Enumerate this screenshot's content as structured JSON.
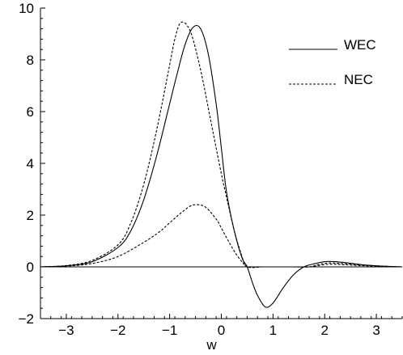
{
  "chart_data": {
    "type": "line",
    "xlabel": "w",
    "ylabel": "",
    "title": "",
    "xlim": [
      -3.5,
      3.5
    ],
    "ylim": [
      -2,
      10
    ],
    "x_ticks": [
      -3,
      -2,
      -1,
      0,
      1,
      2,
      3
    ],
    "y_ticks": [
      -2,
      0,
      2,
      4,
      6,
      8,
      10
    ],
    "x_tick_labels": [
      "−3",
      "−2",
      "−1",
      "0",
      "1",
      "2",
      "3"
    ],
    "y_tick_labels": [
      "−2",
      "0",
      "2",
      "4",
      "6",
      "8",
      "10"
    ],
    "legend": {
      "position": "top-right",
      "entries": [
        "WEC",
        "NEC"
      ]
    },
    "series": [
      {
        "name": "WEC",
        "style": "solid",
        "x": [
          -3.5,
          -3.0,
          -2.5,
          -2.0,
          -1.75,
          -1.5,
          -1.25,
          -1.0,
          -0.85,
          -0.7,
          -0.55,
          -0.4,
          -0.25,
          -0.1,
          0.0,
          0.1,
          0.25,
          0.4,
          0.5,
          0.6,
          0.7,
          0.85,
          1.0,
          1.2,
          1.4,
          1.6,
          1.8,
          2.0,
          2.2,
          2.5,
          2.8,
          3.2,
          3.5
        ],
        "y": [
          0.0,
          0.04,
          0.2,
          0.75,
          1.4,
          2.6,
          4.3,
          6.3,
          7.5,
          8.6,
          9.25,
          9.2,
          8.2,
          6.3,
          4.6,
          2.9,
          1.4,
          0.35,
          0.0,
          -0.6,
          -1.1,
          -1.55,
          -1.4,
          -0.8,
          -0.3,
          0.0,
          0.12,
          0.2,
          0.2,
          0.14,
          0.07,
          0.02,
          0.0
        ]
      },
      {
        "name": "NEC",
        "style": "dashed",
        "x": [
          -3.5,
          -3.0,
          -2.5,
          -2.0,
          -1.75,
          -1.5,
          -1.25,
          -1.0,
          -0.9,
          -0.78,
          -0.6,
          -0.4,
          -0.2,
          0.0,
          0.1,
          0.25,
          0.4,
          0.5,
          0.8,
          1.1,
          1.4,
          1.7,
          1.9,
          2.1,
          2.4,
          2.8,
          3.2,
          3.5
        ],
        "y": [
          0.0,
          0.05,
          0.25,
          0.85,
          1.7,
          3.2,
          5.3,
          7.8,
          8.8,
          9.45,
          9.1,
          7.6,
          5.6,
          3.6,
          2.7,
          1.4,
          0.4,
          0.0,
          0.0,
          0.0,
          0.0,
          0.0,
          0.1,
          0.15,
          0.12,
          0.06,
          0.02,
          0.0
        ]
      },
      {
        "name": "NEC",
        "style": "dashed",
        "x": [
          -3.5,
          -3.0,
          -2.5,
          -2.0,
          -1.5,
          -1.2,
          -1.0,
          -0.8,
          -0.6,
          -0.45,
          -0.3,
          -0.1,
          0.0,
          0.15,
          0.3,
          0.45,
          0.5,
          0.8,
          1.1,
          1.4,
          1.7,
          1.9,
          2.1,
          2.4,
          2.8,
          3.2,
          3.5
        ],
        "y": [
          0.0,
          0.03,
          0.13,
          0.4,
          0.95,
          1.35,
          1.7,
          2.05,
          2.35,
          2.4,
          2.3,
          1.85,
          1.5,
          0.95,
          0.45,
          0.08,
          0.0,
          0.0,
          0.0,
          0.0,
          0.0,
          0.06,
          0.1,
          0.08,
          0.04,
          0.01,
          0.0
        ]
      }
    ]
  }
}
